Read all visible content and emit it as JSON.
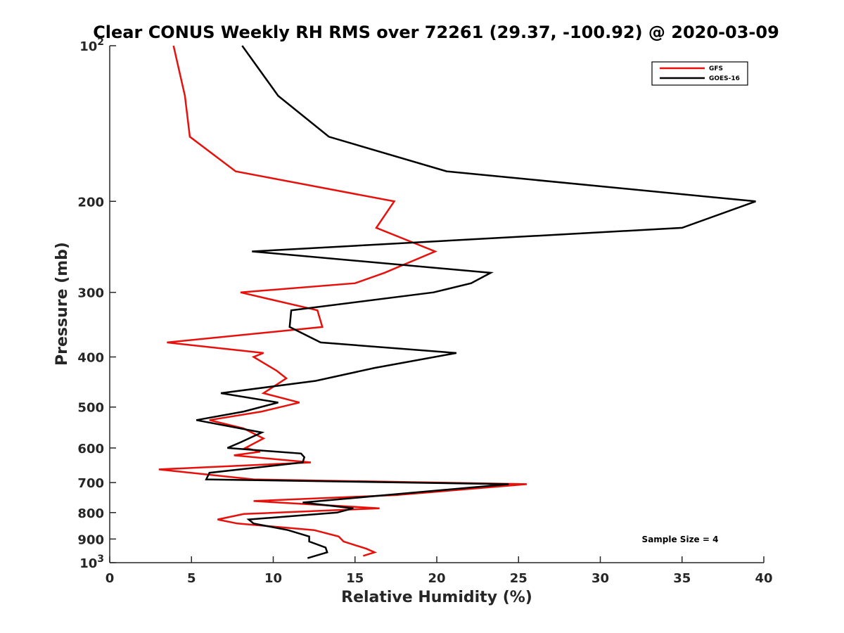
{
  "chart_data": {
    "type": "line",
    "title": "Clear CONUS Weekly RH RMS over 72261 (29.37, -100.92) @ 2020-03-09",
    "xlabel": "Relative Humidity (%)",
    "ylabel": "Pressure (mb)",
    "xlim": [
      0,
      40
    ],
    "ylim": [
      100,
      1000
    ],
    "y_scale": "log",
    "y_reversed": true,
    "grid": false,
    "legend_position": "top-right",
    "x_ticks": [
      0,
      5,
      10,
      15,
      20,
      25,
      30,
      35,
      40
    ],
    "y_ticks": [
      {
        "value": 100,
        "base": "10",
        "exp": "2"
      },
      {
        "value": 200,
        "label": "200"
      },
      {
        "value": 300,
        "label": "300"
      },
      {
        "value": 400,
        "label": "400"
      },
      {
        "value": 500,
        "label": "500"
      },
      {
        "value": 600,
        "label": "600"
      },
      {
        "value": 700,
        "label": "700"
      },
      {
        "value": 800,
        "label": "800"
      },
      {
        "value": 900,
        "label": "900"
      },
      {
        "value": 1000,
        "base": "10",
        "exp": "3"
      }
    ],
    "series": [
      {
        "name": "GFS",
        "color": "#e8100a",
        "points": [
          [
            3.9,
            100
          ],
          [
            4.6,
            125
          ],
          [
            4.9,
            150
          ],
          [
            7.7,
            175
          ],
          [
            17.4,
            200
          ],
          [
            16.3,
            225
          ],
          [
            19.9,
            250
          ],
          [
            16.8,
            275
          ],
          [
            15.0,
            288
          ],
          [
            8.0,
            300
          ],
          [
            12.7,
            325
          ],
          [
            13.0,
            350
          ],
          [
            3.5,
            375
          ],
          [
            9.4,
            393
          ],
          [
            8.8,
            400
          ],
          [
            10.2,
            425
          ],
          [
            10.8,
            440
          ],
          [
            9.4,
            470
          ],
          [
            11.6,
            490
          ],
          [
            9.3,
            510
          ],
          [
            6.1,
            530
          ],
          [
            8.2,
            550
          ],
          [
            9.4,
            575
          ],
          [
            8.3,
            600
          ],
          [
            9.2,
            610
          ],
          [
            7.6,
            620
          ],
          [
            12.3,
            640
          ],
          [
            3.0,
            660
          ],
          [
            8.8,
            690
          ],
          [
            25.5,
            705
          ],
          [
            17.5,
            740
          ],
          [
            8.8,
            760
          ],
          [
            16.5,
            785
          ],
          [
            8.2,
            805
          ],
          [
            6.6,
            825
          ],
          [
            7.8,
            840
          ],
          [
            12.5,
            865
          ],
          [
            14.0,
            890
          ],
          [
            14.3,
            910
          ],
          [
            15.7,
            940
          ],
          [
            16.2,
            955
          ],
          [
            15.5,
            970
          ]
        ]
      },
      {
        "name": "GOES-16",
        "color": "#000000",
        "points": [
          [
            8.1,
            100
          ],
          [
            10.3,
            125
          ],
          [
            13.4,
            150
          ],
          [
            20.6,
            175
          ],
          [
            39.5,
            200
          ],
          [
            35.0,
            225
          ],
          [
            8.7,
            250
          ],
          [
            23.3,
            275
          ],
          [
            22.1,
            288
          ],
          [
            19.8,
            300
          ],
          [
            11.1,
            325
          ],
          [
            11.0,
            350
          ],
          [
            12.9,
            375
          ],
          [
            21.2,
            393
          ],
          [
            16.2,
            420
          ],
          [
            12.6,
            445
          ],
          [
            6.8,
            470
          ],
          [
            10.3,
            490
          ],
          [
            8.2,
            510
          ],
          [
            5.3,
            530
          ],
          [
            9.3,
            560
          ],
          [
            8.0,
            585
          ],
          [
            7.2,
            600
          ],
          [
            11.7,
            615
          ],
          [
            11.9,
            625
          ],
          [
            11.8,
            640
          ],
          [
            6.1,
            670
          ],
          [
            5.9,
            690
          ],
          [
            24.4,
            705
          ],
          [
            16.9,
            740
          ],
          [
            11.8,
            765
          ],
          [
            14.9,
            785
          ],
          [
            13.9,
            800
          ],
          [
            8.5,
            825
          ],
          [
            8.8,
            840
          ],
          [
            10.9,
            865
          ],
          [
            12.2,
            890
          ],
          [
            12.2,
            910
          ],
          [
            13.2,
            935
          ],
          [
            13.3,
            955
          ],
          [
            12.1,
            980
          ]
        ]
      }
    ],
    "annotation": "Sample Size = 4"
  }
}
